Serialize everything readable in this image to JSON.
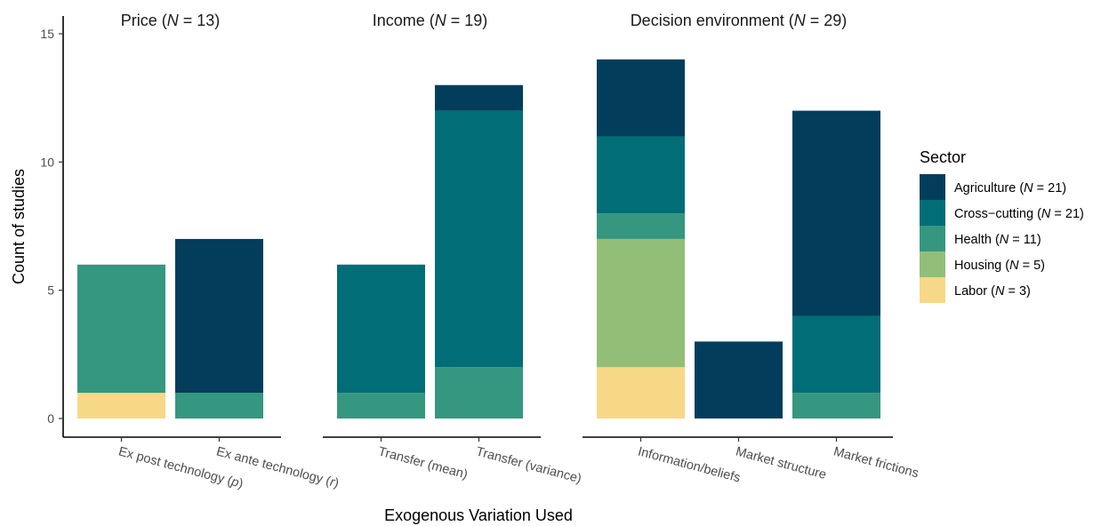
{
  "chart_data": {
    "type": "bar",
    "stacked": true,
    "ylabel": "Count of studies",
    "xlabel": "Exogenous Variation Used",
    "ylim": [
      0,
      15
    ],
    "yticks": [
      0,
      5,
      10,
      15
    ],
    "grid": false,
    "legend": {
      "title": "Sector",
      "position": "right",
      "entries": [
        {
          "key": "Agriculture",
          "pre": "Agriculture (",
          "n": "N",
          "post": " = 21)",
          "color": "#023E5B"
        },
        {
          "key": "Cross-cutting",
          "pre": "Cross−cutting (",
          "n": "N",
          "post": " = 21)",
          "color": "#006D77"
        },
        {
          "key": "Health",
          "pre": "Health (",
          "n": "N",
          "post": " = 11)",
          "color": "#35977F"
        },
        {
          "key": "Housing",
          "pre": "Housing (",
          "n": "N",
          "post": " = 5)",
          "color": "#93BE78"
        },
        {
          "key": "Labor",
          "pre": "Labor (",
          "n": "N",
          "post": " = 3)",
          "color": "#F7D886"
        }
      ]
    },
    "stack_order": [
      "Labor",
      "Housing",
      "Health",
      "Cross-cutting",
      "Agriculture"
    ],
    "facets": [
      {
        "title_pre": "Price (",
        "title_n": "N",
        "title_post": " = 13)",
        "categories": [
          {
            "label": "Ex post technology (",
            "label_var": "p",
            "label_post": ")",
            "values": {
              "Labor": 1,
              "Health": 5
            }
          },
          {
            "label": "Ex ante technology (",
            "label_var": "r",
            "label_post": ")",
            "values": {
              "Health": 1,
              "Agriculture": 6
            }
          }
        ]
      },
      {
        "title_pre": "Income (",
        "title_n": "N",
        "title_post": " = 19)",
        "categories": [
          {
            "label": "Transfer (mean)",
            "values": {
              "Health": 1,
              "Cross-cutting": 5
            }
          },
          {
            "label": "Transfer (variance)",
            "values": {
              "Health": 2,
              "Cross-cutting": 10,
              "Agriculture": 1
            }
          }
        ]
      },
      {
        "title_pre": "Decision environment (",
        "title_n": "N",
        "title_post": " = 29)",
        "categories": [
          {
            "label": "Information/beliefs",
            "values": {
              "Labor": 2,
              "Housing": 5,
              "Health": 1,
              "Cross-cutting": 3,
              "Agriculture": 3
            }
          },
          {
            "label": "Market structure",
            "values": {
              "Agriculture": 3
            }
          },
          {
            "label": "Market frictions",
            "values": {
              "Health": 1,
              "Cross-cutting": 3,
              "Agriculture": 8
            }
          }
        ]
      }
    ]
  }
}
